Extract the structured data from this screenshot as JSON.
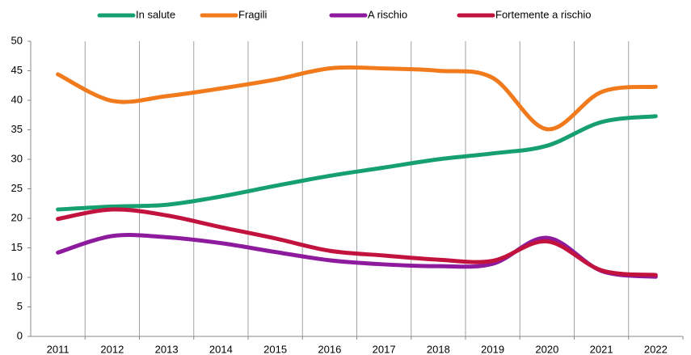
{
  "chart_data": {
    "type": "line",
    "categories": [
      "2011",
      "2012",
      "2013",
      "2014",
      "2015",
      "2016",
      "2017",
      "2018",
      "2019",
      "2020",
      "2021",
      "2022"
    ],
    "series": [
      {
        "name": "In salute",
        "color": "#17a06f",
        "values": [
          21.5,
          22,
          22.3,
          23.7,
          25.5,
          27.2,
          28.6,
          30,
          31,
          32.3,
          36.3,
          37.3
        ]
      },
      {
        "name": "Fragili",
        "color": "#f07a1c",
        "values": [
          44.4,
          39.9,
          40.7,
          42,
          43.5,
          45.4,
          45.4,
          45,
          43.8,
          35.1,
          41.4,
          42.3
        ]
      },
      {
        "name": "A rischio",
        "color": "#8e1a9e",
        "values": [
          14.2,
          17,
          16.8,
          15.8,
          14.3,
          12.9,
          12.2,
          11.9,
          12.3,
          16.7,
          11.1,
          10.1
        ]
      },
      {
        "name": "Fortemente a rischio",
        "color": "#c2123e",
        "values": [
          19.9,
          21.5,
          20.5,
          18.5,
          16.6,
          14.5,
          13.7,
          13,
          12.8,
          16.1,
          11.2,
          10.4
        ]
      }
    ],
    "ylim": [
      0,
      50
    ],
    "yticks": [
      0,
      5,
      10,
      15,
      20,
      25,
      30,
      35,
      40,
      45,
      50
    ],
    "legend": "top",
    "grid": "vertical"
  }
}
